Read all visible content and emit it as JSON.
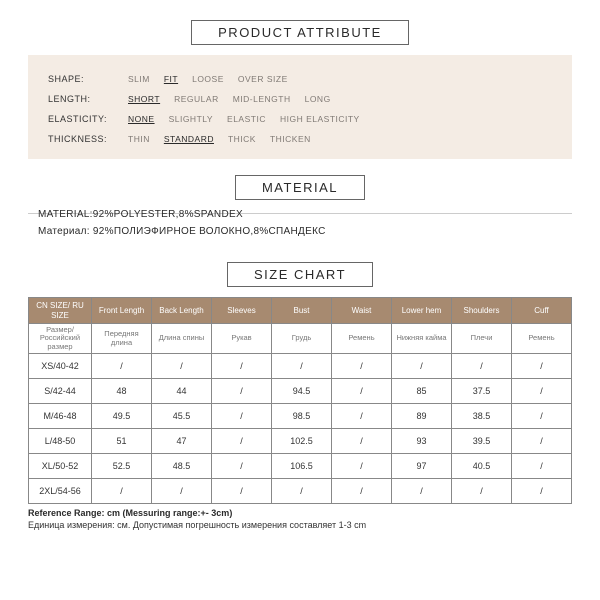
{
  "titles": {
    "attribute": "PRODUCT ATTRIBUTE",
    "material": "MATERIAL",
    "size": "SIZE CHART"
  },
  "attributes": {
    "shape": {
      "label": "SHAPE:",
      "opts": [
        "SLIM",
        "FIT",
        "LOOSE",
        "OVER SIZE"
      ],
      "selected": 1
    },
    "length": {
      "label": "LENGTH:",
      "opts": [
        "SHORT",
        "REGULAR",
        "MID-LENGTH",
        "LONG"
      ],
      "selected": 0
    },
    "elastic": {
      "label": "ELASTICITY:",
      "opts": [
        "NONE",
        "SLIGHTLY",
        "ELASTIC",
        "HIGH ELASTICITY"
      ],
      "selected": 0
    },
    "thick": {
      "label": "THICKNESS:",
      "opts": [
        "THIN",
        "STANDARD",
        "THICK",
        "THICKEN"
      ],
      "selected": 1
    }
  },
  "material": {
    "line1": "MATERIAL:92%POLYESTER,8%SPANDEX",
    "line2": "Материал: 92%ПОЛИЭФИРНОЕ ВОЛОКНО,8%СПАНДЕКС"
  },
  "table": {
    "header_en": [
      "CN SIZE/ RU SIZE",
      "Front Length",
      "Back Length",
      "Sleeves",
      "Bust",
      "Waist",
      "Lower hem",
      "Shoulders",
      "Cuff"
    ],
    "header_ru": [
      "Размер/ Российский размер",
      "Передняя длина",
      "Длина спины",
      "Рукав",
      "Грудь",
      "Ремень",
      "Нижняя кайма",
      "Плечи",
      "Ремень"
    ],
    "rows": [
      [
        "XS/40-42",
        "/",
        "/",
        "/",
        "/",
        "/",
        "/",
        "/",
        "/"
      ],
      [
        "S/42-44",
        "48",
        "44",
        "/",
        "94.5",
        "/",
        "85",
        "37.5",
        "/"
      ],
      [
        "M/46-48",
        "49.5",
        "45.5",
        "/",
        "98.5",
        "/",
        "89",
        "38.5",
        "/"
      ],
      [
        "L/48-50",
        "51",
        "47",
        "/",
        "102.5",
        "/",
        "93",
        "39.5",
        "/"
      ],
      [
        "XL/50-52",
        "52.5",
        "48.5",
        "/",
        "106.5",
        "/",
        "97",
        "40.5",
        "/"
      ],
      [
        "2XL/54-56",
        "/",
        "/",
        "/",
        "/",
        "/",
        "/",
        "/",
        "/"
      ]
    ]
  },
  "ref": {
    "line1": "Reference Range: cm (Messuring range:+- 3cm)",
    "line2": "Единица измерения: см. Допустимая погрешность измерения составляет 1-3 cm"
  }
}
